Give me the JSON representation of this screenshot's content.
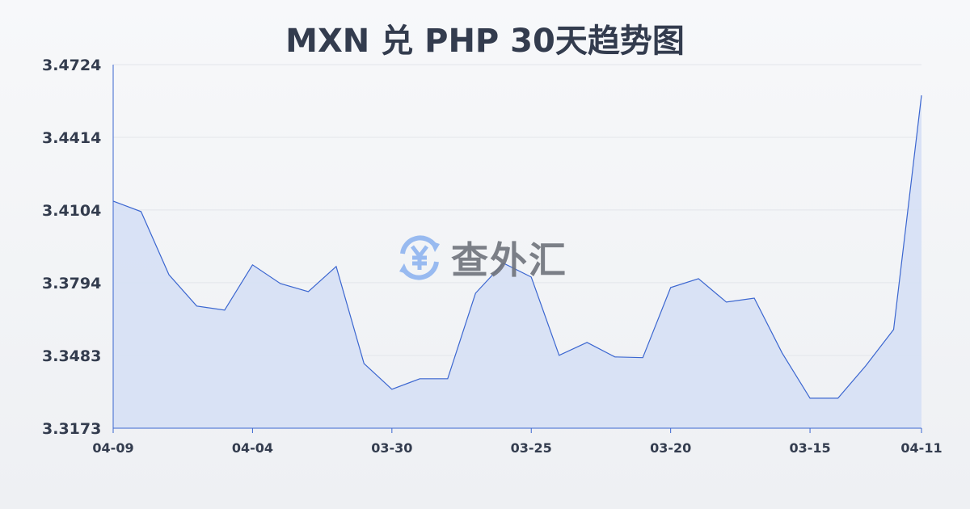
{
  "chart_data": {
    "type": "area",
    "title": "MXN 兑 PHP 30天趋势图",
    "xlabel": "",
    "ylabel": "",
    "x_tick_labels": [
      {
        "index": 0,
        "label": "04-09"
      },
      {
        "index": 5,
        "label": "04-04"
      },
      {
        "index": 10,
        "label": "03-30"
      },
      {
        "index": 15,
        "label": "03-25"
      },
      {
        "index": 20,
        "label": "03-20"
      },
      {
        "index": 25,
        "label": "03-15"
      },
      {
        "index": 29,
        "label": "04-11"
      }
    ],
    "y_ticks": [
      "3.4724",
      "3.4414",
      "3.4104",
      "3.3794",
      "3.3483",
      "3.3173"
    ],
    "ylim": [
      3.3173,
      3.4724
    ],
    "grid": true,
    "values": [
      3.4142,
      3.4097,
      3.3828,
      3.3694,
      3.3677,
      3.387,
      3.379,
      3.3756,
      3.3863,
      3.3449,
      3.3339,
      3.3384,
      3.3384,
      3.3749,
      3.3877,
      3.3818,
      3.3484,
      3.3539,
      3.3477,
      3.3474,
      3.3773,
      3.3811,
      3.3711,
      3.3728,
      3.3494,
      3.3301,
      3.3301,
      3.3439,
      3.3594,
      3.4593
    ],
    "colors": {
      "line": "#3b66d0",
      "fill": "#d6e0f5",
      "grid": "#e3e5ea",
      "text": "#333c4e"
    }
  },
  "watermark": {
    "text": "查外汇",
    "icon": "yen-exchange-icon",
    "icon_color": "#8fb4f0"
  }
}
